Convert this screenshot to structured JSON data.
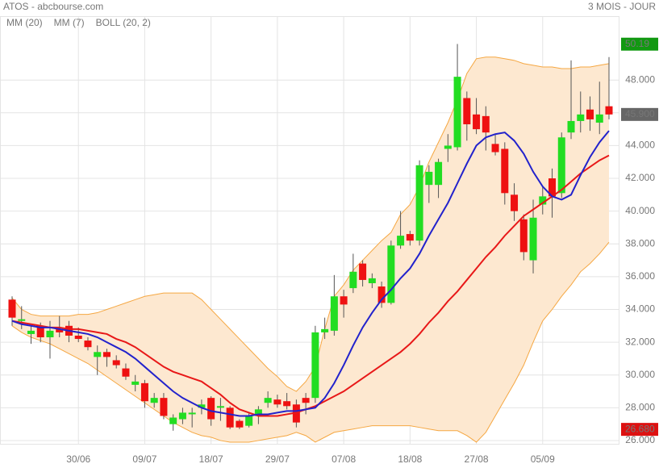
{
  "chart_data": {
    "type": "candlestick",
    "title": "ATOS - abcbourse.com",
    "subtitle": "3 MOIS - JOUR",
    "categories": [
      null,
      null,
      null,
      null,
      null,
      null,
      null,
      "30/06",
      null,
      null,
      null,
      null,
      null,
      null,
      "09/07",
      null,
      null,
      null,
      null,
      null,
      null,
      "18/07",
      null,
      null,
      null,
      null,
      null,
      null,
      "29/07",
      null,
      null,
      null,
      null,
      null,
      null,
      "07/08",
      null,
      null,
      null,
      null,
      null,
      null,
      "18/08",
      null,
      null,
      null,
      null,
      null,
      null,
      "27/08",
      null,
      null,
      null,
      null,
      null,
      null,
      "05/09",
      null,
      null,
      null,
      null,
      null,
      null,
      null
    ],
    "open": [
      34.6,
      33.3,
      32.5,
      33.0,
      32.3,
      32.8,
      33.0,
      32.4,
      32.1,
      31.1,
      31.4,
      30.9,
      30.4,
      29.4,
      29.5,
      28.3,
      28.6,
      27.0,
      27.3,
      27.6,
      28.0,
      28.6,
      28.0,
      28.0,
      27.2,
      26.9,
      27.5,
      28.3,
      28.5,
      28.4,
      28.2,
      28.6,
      28.6,
      32.6,
      32.7,
      34.8,
      35.3,
      36.8,
      35.6,
      35.4,
      34.4,
      37.9,
      38.6,
      38.2,
      41.6,
      41.6,
      43.8,
      43.9,
      46.9,
      45.9,
      45.8,
      44.1,
      43.8,
      41.0,
      39.5,
      37.0,
      40.4,
      42.0,
      41.1,
      44.8,
      45.5,
      46.2,
      45.4,
      46.4
    ],
    "high": [
      34.8,
      34.2,
      33.0,
      33.2,
      33.3,
      33.6,
      33.3,
      32.9,
      32.3,
      31.8,
      31.6,
      31.2,
      30.7,
      30.0,
      29.7,
      28.9,
      28.9,
      27.6,
      28.0,
      28.0,
      28.5,
      28.7,
      28.6,
      28.1,
      27.3,
      27.7,
      28.1,
      29.0,
      28.8,
      28.9,
      28.5,
      28.9,
      33.0,
      33.5,
      36.1,
      35.2,
      37.4,
      37.0,
      36.2,
      35.7,
      38.2,
      40.0,
      38.8,
      43.1,
      42.8,
      43.2,
      44.7,
      50.2,
      47.3,
      46.9,
      46.4,
      44.7,
      44.2,
      41.7,
      39.8,
      40.7,
      41.5,
      42.6,
      44.8,
      49.2,
      47.3,
      47.0,
      47.9,
      49.4
    ],
    "low": [
      33.0,
      32.8,
      31.9,
      32.0,
      31.0,
      32.3,
      32.0,
      32.0,
      31.5,
      30.0,
      30.5,
      30.4,
      29.7,
      29.0,
      28.0,
      28.0,
      27.3,
      26.6,
      27.0,
      26.8,
      27.6,
      26.9,
      27.2,
      26.7,
      26.7,
      26.8,
      27.0,
      28.0,
      28.0,
      27.9,
      26.8,
      27.6,
      28.3,
      32.2,
      32.4,
      33.5,
      35.0,
      35.4,
      35.3,
      34.1,
      34.3,
      37.7,
      37.9,
      37.9,
      40.5,
      40.8,
      43.0,
      43.7,
      44.3,
      44.7,
      43.7,
      43.4,
      40.4,
      39.4,
      37.0,
      36.2,
      39.8,
      39.6,
      40.8,
      44.4,
      44.8,
      44.9,
      44.7,
      45.6
    ],
    "close": [
      33.5,
      33.4,
      32.7,
      32.3,
      32.7,
      32.6,
      32.4,
      32.2,
      31.7,
      31.4,
      31.1,
      30.6,
      29.9,
      29.6,
      28.4,
      28.6,
      27.5,
      27.4,
      27.7,
      27.7,
      28.2,
      27.3,
      28.1,
      26.8,
      26.8,
      27.5,
      27.9,
      28.6,
      28.2,
      28.1,
      27.1,
      28.3,
      32.6,
      32.8,
      34.8,
      34.3,
      36.3,
      35.8,
      35.9,
      34.4,
      37.9,
      38.5,
      38.2,
      42.8,
      42.4,
      43.0,
      44.0,
      48.2,
      45.3,
      45.0,
      44.8,
      43.6,
      41.1,
      40.0,
      37.5,
      39.6,
      40.9,
      40.9,
      44.5,
      45.5,
      45.9,
      45.6,
      45.9,
      45.9
    ],
    "up_color": "#22dd22",
    "down_color": "#ee1111",
    "series": [
      {
        "name": "MM (20)",
        "color": "#e81818",
        "values": [
          33.3,
          33.2,
          33.1,
          33.0,
          32.9,
          32.9,
          32.8,
          32.8,
          32.7,
          32.6,
          32.5,
          32.2,
          32.0,
          31.7,
          31.3,
          30.9,
          30.5,
          30.2,
          30.0,
          29.8,
          29.6,
          29.2,
          28.8,
          28.3,
          27.9,
          27.7,
          27.5,
          27.5,
          27.5,
          27.6,
          27.7,
          27.9,
          28.1,
          28.4,
          28.7,
          29.0,
          29.4,
          29.8,
          30.2,
          30.6,
          31.0,
          31.4,
          31.9,
          32.5,
          33.2,
          33.8,
          34.5,
          35.1,
          35.8,
          36.5,
          37.2,
          37.8,
          38.5,
          39.1,
          39.7,
          40.1,
          40.5,
          40.9,
          41.3,
          41.8,
          42.3,
          42.7,
          43.1,
          43.4
        ]
      },
      {
        "name": "MM (7)",
        "color": "#2222cc",
        "values": [
          33.3,
          33.1,
          33.0,
          32.9,
          32.9,
          32.8,
          32.7,
          32.6,
          32.5,
          32.3,
          32.0,
          31.7,
          31.4,
          31.0,
          30.5,
          30.0,
          29.5,
          29.0,
          28.6,
          28.3,
          28.0,
          27.8,
          27.7,
          27.6,
          27.5,
          27.5,
          27.6,
          27.6,
          27.7,
          27.8,
          27.8,
          27.9,
          28.0,
          28.6,
          29.5,
          30.6,
          31.8,
          32.9,
          33.8,
          34.6,
          35.2,
          35.9,
          36.5,
          37.4,
          38.5,
          39.5,
          40.5,
          41.7,
          42.9,
          44.0,
          44.5,
          44.7,
          44.8,
          44.3,
          43.5,
          42.4,
          41.5,
          40.9,
          40.7,
          41.0,
          42.2,
          43.3,
          44.2,
          44.9
        ]
      }
    ],
    "bollinger": {
      "name": "BOLL (20, 2)",
      "color": "#f5a742",
      "fill": "#fde8d0",
      "upper": [
        34.7,
        34.0,
        33.7,
        33.6,
        33.6,
        33.6,
        33.6,
        33.7,
        33.7,
        33.8,
        34.0,
        34.2,
        34.4,
        34.6,
        34.8,
        34.9,
        35.0,
        35.0,
        35.0,
        35.0,
        34.6,
        34.0,
        33.4,
        32.8,
        32.2,
        31.6,
        31.0,
        30.4,
        29.9,
        29.3,
        29.0,
        29.6,
        30.5,
        32.8,
        34.8,
        35.5,
        36.4,
        37.0,
        37.6,
        38.2,
        38.7,
        39.8,
        40.4,
        41.5,
        43.0,
        44.2,
        45.4,
        46.8,
        48.4,
        49.3,
        49.4,
        49.4,
        49.3,
        49.2,
        49.0,
        48.9,
        48.8,
        48.8,
        48.7,
        48.7,
        48.8,
        48.8,
        48.9,
        49.0
      ],
      "lower": [
        33.0,
        32.6,
        32.3,
        32.1,
        31.9,
        31.6,
        31.3,
        31.0,
        30.7,
        30.3,
        29.9,
        29.5,
        29.1,
        28.7,
        28.3,
        27.9,
        27.5,
        27.1,
        26.8,
        26.5,
        26.3,
        26.2,
        26.0,
        25.9,
        25.9,
        25.9,
        26.0,
        26.1,
        26.2,
        26.3,
        26.5,
        26.3,
        25.9,
        26.2,
        26.5,
        26.6,
        26.7,
        26.8,
        26.9,
        26.9,
        26.9,
        26.9,
        26.9,
        26.8,
        26.7,
        26.6,
        26.6,
        26.6,
        26.3,
        25.9,
        26.5,
        27.5,
        28.5,
        29.5,
        30.6,
        32.0,
        33.3,
        34.0,
        34.8,
        35.5,
        36.3,
        36.8,
        37.4,
        38.1
      ]
    },
    "ylim": [
      25.8,
      51.9
    ],
    "yticks": [
      {
        "value": 26,
        "label": "26.000"
      },
      {
        "value": 28,
        "label": "28.000"
      },
      {
        "value": 30,
        "label": "30.000"
      },
      {
        "value": 32,
        "label": "32.000"
      },
      {
        "value": 34,
        "label": "34.000"
      },
      {
        "value": 36,
        "label": "36.000"
      },
      {
        "value": 38,
        "label": "38.000"
      },
      {
        "value": 40,
        "label": "40.000"
      },
      {
        "value": 42,
        "label": "42.000"
      },
      {
        "value": 44,
        "label": "44.000"
      },
      {
        "value": 46,
        "label": "46.000"
      },
      {
        "value": 48,
        "label": "48.000"
      }
    ],
    "markers": [
      {
        "value": 50.19,
        "color": "#119911"
      },
      {
        "value": 45.9,
        "label": "45.900",
        "color": "#666666"
      },
      {
        "value": 26.68,
        "label": "26.680",
        "color": "#dd1111"
      }
    ],
    "grid": true
  }
}
